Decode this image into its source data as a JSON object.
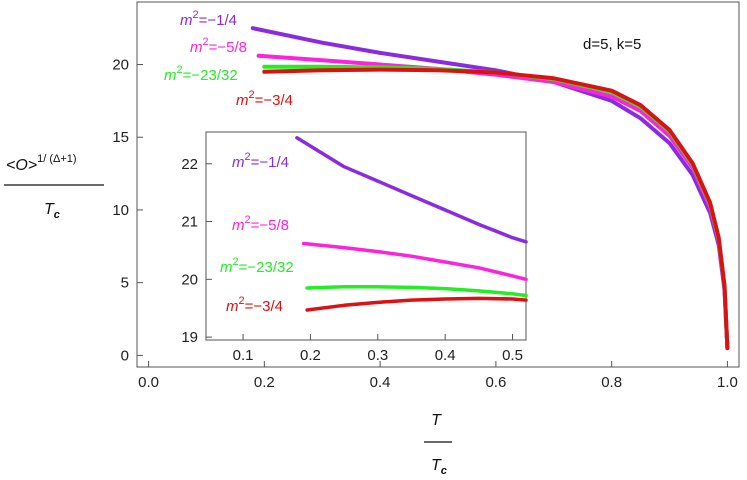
{
  "chart_data": [
    {
      "type": "line",
      "annotation": "d=5, k=5",
      "ylabel": {
        "numerator": "<O>",
        "exponent": "1/ (Δ+1)",
        "denominator": "T",
        "denominator_sub": "c"
      },
      "xlabel": {
        "numerator": "T",
        "denominator": "T",
        "denominator_sub": "c"
      },
      "xlim": [
        -0.02,
        1.02
      ],
      "ylim": [
        -0.8,
        24.3
      ],
      "xticks": [
        "0.0",
        "0.2",
        "0.4",
        "0.6",
        "0.8",
        "1.0"
      ],
      "xtick_values": [
        0.0,
        0.2,
        0.4,
        0.6,
        0.8,
        1.0
      ],
      "yticks": [
        "0",
        "5",
        "10",
        "15",
        "20"
      ],
      "ytick_values": [
        0,
        5,
        10,
        15,
        20
      ],
      "series": [
        {
          "name": "m²=−1/4",
          "name_base": "m",
          "name_sup": "2",
          "name_rest": "=−1/4",
          "color": "#8a2be2",
          "x": [
            0.18,
            0.3,
            0.4,
            0.5,
            0.6,
            0.7,
            0.8,
            0.85,
            0.9,
            0.94,
            0.97,
            0.985,
            0.995,
            1.0
          ],
          "y": [
            22.5,
            21.5,
            20.8,
            20.2,
            19.6,
            18.8,
            17.5,
            16.3,
            14.6,
            12.4,
            9.8,
            7.6,
            4.5,
            0.5
          ]
        },
        {
          "name": "m²=−5/8",
          "name_base": "m",
          "name_sup": "2",
          "name_rest": "=−5/8",
          "color": "#ff22dd",
          "x": [
            0.19,
            0.3,
            0.4,
            0.5,
            0.6,
            0.7,
            0.8,
            0.85,
            0.9,
            0.94,
            0.97,
            0.985,
            0.995,
            1.0
          ],
          "y": [
            20.6,
            20.3,
            20.0,
            19.7,
            19.3,
            18.8,
            17.8,
            16.8,
            15.1,
            12.9,
            10.2,
            7.9,
            4.7,
            0.5
          ]
        },
        {
          "name": "m²=−23/32",
          "name_base": "m",
          "name_sup": "2",
          "name_rest": "=−23/32",
          "color": "#22ee22",
          "x": [
            0.2,
            0.3,
            0.4,
            0.5,
            0.6,
            0.7,
            0.8,
            0.85,
            0.9,
            0.94,
            0.97,
            0.985,
            0.995,
            1.0
          ],
          "y": [
            19.85,
            19.85,
            19.8,
            19.7,
            19.45,
            19.0,
            18.1,
            17.1,
            15.4,
            13.1,
            10.4,
            8.0,
            4.8,
            0.5
          ]
        },
        {
          "name": "m²=−3/4",
          "name_base": "m",
          "name_sup": "2",
          "name_rest": "=−3/4",
          "color": "#dd1111",
          "x": [
            0.2,
            0.3,
            0.4,
            0.5,
            0.6,
            0.7,
            0.8,
            0.85,
            0.9,
            0.94,
            0.97,
            0.985,
            0.995,
            1.0
          ],
          "y": [
            19.5,
            19.6,
            19.65,
            19.6,
            19.45,
            19.05,
            18.2,
            17.2,
            15.5,
            13.2,
            10.5,
            8.1,
            4.8,
            0.5
          ]
        }
      ]
    },
    {
      "type": "line",
      "role": "inset",
      "xlim": [
        0.045,
        0.52
      ],
      "ylim": [
        18.95,
        22.55
      ],
      "xticks": [
        "0.1",
        "0.2",
        "0.3",
        "0.4",
        "0.5"
      ],
      "xtick_values": [
        0.1,
        0.2,
        0.3,
        0.4,
        0.5
      ],
      "yticks": [
        "19",
        "20",
        "21",
        "22"
      ],
      "ytick_values": [
        19,
        20,
        21,
        22
      ],
      "series": [
        {
          "name": "m²=−1/4",
          "name_base": "m",
          "name_sup": "2",
          "name_rest": "=−1/4",
          "color": "#8a2be2",
          "x": [
            0.18,
            0.25,
            0.3,
            0.35,
            0.4,
            0.45,
            0.5,
            0.52
          ],
          "y": [
            22.45,
            21.95,
            21.7,
            21.45,
            21.2,
            20.95,
            20.72,
            20.65
          ]
        },
        {
          "name": "m²=−5/8",
          "name_base": "m",
          "name_sup": "2",
          "name_rest": "=−5/8",
          "color": "#ff22dd",
          "x": [
            0.19,
            0.25,
            0.3,
            0.35,
            0.4,
            0.45,
            0.5,
            0.52
          ],
          "y": [
            20.62,
            20.55,
            20.48,
            20.4,
            20.3,
            20.2,
            20.06,
            20.0
          ]
        },
        {
          "name": "m²=−23/32",
          "name_base": "m",
          "name_sup": "2",
          "name_rest": "=−23/32",
          "color": "#22ee22",
          "x": [
            0.195,
            0.25,
            0.3,
            0.35,
            0.4,
            0.45,
            0.5,
            0.52
          ],
          "y": [
            19.85,
            19.87,
            19.87,
            19.86,
            19.84,
            19.8,
            19.75,
            19.72
          ]
        },
        {
          "name": "m²=−3/4",
          "name_base": "m",
          "name_sup": "2",
          "name_rest": "=−3/4",
          "color": "#dd1111",
          "x": [
            0.195,
            0.25,
            0.3,
            0.35,
            0.4,
            0.45,
            0.5,
            0.52
          ],
          "y": [
            19.47,
            19.55,
            19.6,
            19.64,
            19.66,
            19.67,
            19.66,
            19.64
          ]
        }
      ]
    }
  ]
}
